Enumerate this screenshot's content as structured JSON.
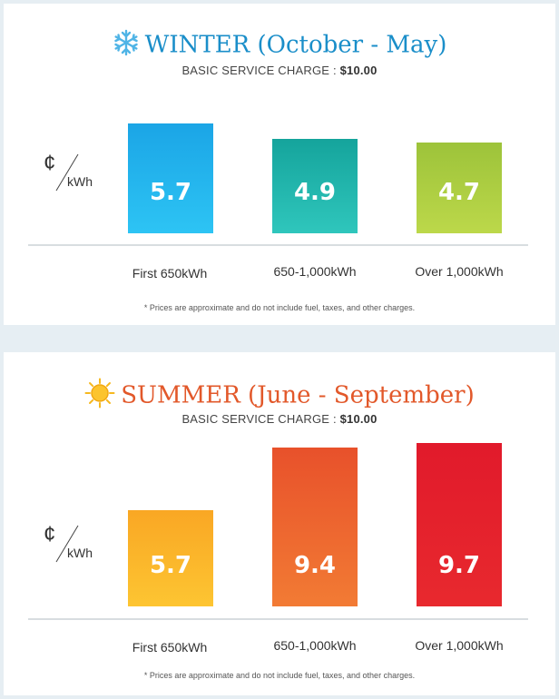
{
  "chart_data": [
    {
      "type": "bar",
      "season": "WINTER",
      "period": "(October - May)",
      "icon": "snowflake-icon",
      "title_color": "#1a8ec9",
      "service_charge_label": "BASIC SERVICE CHARGE :",
      "service_charge_value": "$10.00",
      "unit_symbol": "¢",
      "unit_label": "kWh",
      "categories": [
        "First 650kWh",
        "650-1,000kWh",
        "Over 1,000kWh"
      ],
      "values": [
        5.7,
        4.9,
        4.7
      ],
      "value_labels": [
        "5.7",
        "4.9",
        "4.7"
      ],
      "colors": [
        [
          "#1ba5e6",
          "#2dc4f4"
        ],
        [
          "#15a49c",
          "#2fc6bc"
        ],
        [
          "#9dc33a",
          "#bcd84a"
        ]
      ],
      "footnote": "* Prices are approximate and do not include fuel, taxes, and other charges."
    },
    {
      "type": "bar",
      "season": "SUMMER",
      "period": "(June - September)",
      "icon": "sun-icon",
      "title_color": "#e2582a",
      "service_charge_label": "BASIC SERVICE CHARGE :",
      "service_charge_value": "$10.00",
      "unit_symbol": "¢",
      "unit_label": "kWh",
      "categories": [
        "First 650kWh",
        "650-1,000kWh",
        "Over 1,000kWh"
      ],
      "values": [
        5.7,
        9.4,
        9.7
      ],
      "value_labels": [
        "5.7",
        "9.4",
        "9.7"
      ],
      "colors": [
        [
          "#f9a724",
          "#fdc532"
        ],
        [
          "#e8512b",
          "#f27b34"
        ],
        [
          "#e11a2b",
          "#e8292e"
        ]
      ],
      "footnote": "* Prices are approximate and do not include fuel, taxes, and other charges."
    }
  ]
}
